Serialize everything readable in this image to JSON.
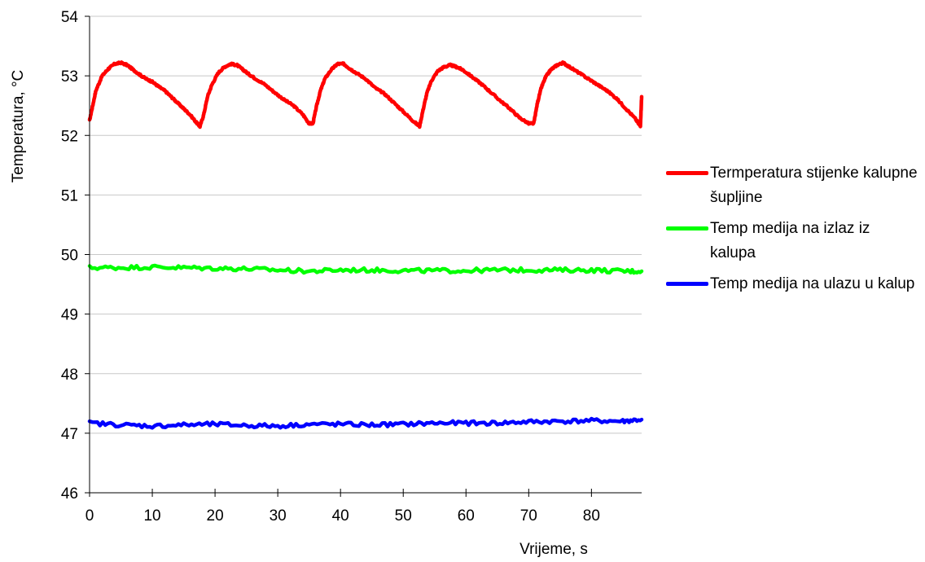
{
  "chart_data": {
    "type": "line",
    "title": "",
    "xlabel": "Vrijeme, s",
    "ylabel": "Temperatura, °C",
    "xlim": [
      0,
      88
    ],
    "ylim": [
      46,
      54
    ],
    "x_ticks": [
      0,
      10,
      20,
      30,
      40,
      50,
      60,
      70,
      80
    ],
    "y_ticks": [
      46,
      47,
      48,
      49,
      50,
      51,
      52,
      53,
      54
    ],
    "grid": "horizontal",
    "legend_position": "right",
    "series": [
      {
        "name": "Termperatura stijenke kalupne šupljine",
        "color": "#ff0000",
        "x": [
          0,
          0.5,
          1,
          2,
          3,
          4,
          5,
          6,
          7,
          8,
          9,
          10,
          11,
          12,
          13,
          14,
          15,
          16,
          17,
          17.6,
          18.2,
          18.8,
          19.5,
          20.5,
          21.5,
          22.5,
          23.5,
          24.5,
          25.5,
          26.5,
          28,
          29.5,
          31,
          32.5,
          34,
          35,
          35.6,
          36.2,
          36.8,
          37.5,
          38.5,
          39.5,
          40.5,
          41.5,
          42.5,
          44,
          45.5,
          47,
          48.5,
          50,
          51.5,
          52.6,
          53.2,
          53.8,
          54.5,
          55.5,
          56.5,
          57.5,
          58.5,
          59.5,
          61,
          62.5,
          64,
          65.5,
          67,
          68.5,
          70,
          70.8,
          71.4,
          72,
          72.7,
          73.5,
          74.5,
          75.5,
          76.5,
          78,
          79.5,
          81,
          82.5,
          84,
          85.5,
          87,
          87.8,
          88
        ],
        "values": [
          52.25,
          52.5,
          52.75,
          53.0,
          53.12,
          53.2,
          53.22,
          53.18,
          53.1,
          53.02,
          52.95,
          52.9,
          52.82,
          52.75,
          52.65,
          52.55,
          52.45,
          52.35,
          52.22,
          52.15,
          52.35,
          52.65,
          52.85,
          53.05,
          53.15,
          53.2,
          53.18,
          53.1,
          53.02,
          52.95,
          52.85,
          52.72,
          52.6,
          52.5,
          52.35,
          52.2,
          52.2,
          52.5,
          52.75,
          52.95,
          53.1,
          53.2,
          53.2,
          53.12,
          53.05,
          52.95,
          52.8,
          52.7,
          52.55,
          52.4,
          52.25,
          52.15,
          52.45,
          52.72,
          52.92,
          53.08,
          53.15,
          53.18,
          53.15,
          53.1,
          52.98,
          52.86,
          52.72,
          52.58,
          52.45,
          52.3,
          52.2,
          52.2,
          52.55,
          52.8,
          52.98,
          53.1,
          53.18,
          53.22,
          53.15,
          53.05,
          52.95,
          52.85,
          52.75,
          52.62,
          52.45,
          52.28,
          52.15,
          52.65
        ]
      },
      {
        "name": "Temp medija na izlaz iz kalupa",
        "color": "#00ff00",
        "x": [
          0,
          5,
          10,
          15,
          20,
          25,
          30,
          35,
          40,
          45,
          50,
          55,
          60,
          65,
          70,
          75,
          80,
          85,
          88
        ],
        "values": [
          49.78,
          49.78,
          49.79,
          49.78,
          49.77,
          49.76,
          49.74,
          49.72,
          49.74,
          49.74,
          49.73,
          49.73,
          49.73,
          49.74,
          49.74,
          49.74,
          49.74,
          49.72,
          49.72
        ]
      },
      {
        "name": "Temp medija na ulazu u kalup",
        "color": "#0000ff",
        "x": [
          0,
          5,
          10,
          15,
          20,
          25,
          30,
          35,
          40,
          45,
          50,
          55,
          60,
          65,
          70,
          75,
          80,
          85,
          88
        ],
        "values": [
          47.17,
          47.14,
          47.12,
          47.14,
          47.15,
          47.13,
          47.12,
          47.15,
          47.15,
          47.14,
          47.15,
          47.17,
          47.17,
          47.17,
          47.19,
          47.2,
          47.21,
          47.2,
          47.23
        ]
      }
    ]
  }
}
